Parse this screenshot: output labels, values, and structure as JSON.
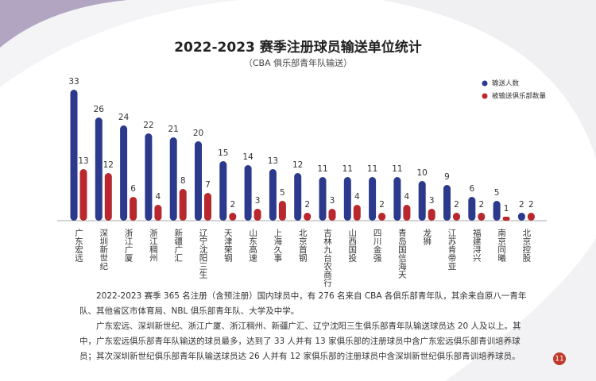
{
  "chart_data": {
    "type": "bar",
    "title": "2022-2023 赛季注册球员输送单位统计",
    "subtitle": "（CBA 俱乐部青年队输送）",
    "categories": [
      "广东宏远",
      "深圳新世纪",
      "浙江广厦",
      "浙江稠州",
      "新疆广汇",
      "辽宁沈阳三生",
      "天津荣钢",
      "山东高速",
      "上海久事",
      "北京首钢",
      "吉林九台农商行",
      "山西国投",
      "四川金强",
      "青岛国信海天",
      "龙狮",
      "江苏肯帝亚",
      "福建浔兴",
      "南京同曦",
      "北京控股"
    ],
    "series": [
      {
        "name": "输送人数",
        "color": "#2b3a8c",
        "values": [
          33,
          26,
          24,
          22,
          21,
          20,
          15,
          14,
          13,
          12,
          11,
          11,
          11,
          11,
          10,
          9,
          6,
          5,
          2
        ]
      },
      {
        "name": "被输送俱乐部数量",
        "color": "#b8282e",
        "values": [
          13,
          12,
          6,
          4,
          8,
          7,
          2,
          3,
          5,
          2,
          3,
          4,
          2,
          4,
          3,
          2,
          2,
          1,
          2
        ]
      }
    ],
    "legend": "top-right"
  },
  "document": {
    "paragraphs": [
      "2022-2023 赛季 365 名注册（含预注册）国内球员中，有 276 名来自 CBA 各俱乐部青年队，其余来自原八一青年队、其他省区市体育局、NBL 俱乐部青年队、大学及中学。",
      "广东宏远、深圳新世纪、浙江广厦、浙江稠州、新疆广汇、辽宁沈阳三生俱乐部青年队输送球员达 20 人及以上。其中，广东宏远俱乐部青年队输送的球员最多，达到了 33 人并有 13 家俱乐部的注册球员中含广东宏远俱乐部青训培养球员；其次深圳新世纪俱乐部青年队输送球员达 26 人并有 12 家俱乐部的注册球员中含深圳新世纪俱乐部青训培养球员。"
    ],
    "page_number": "11"
  }
}
